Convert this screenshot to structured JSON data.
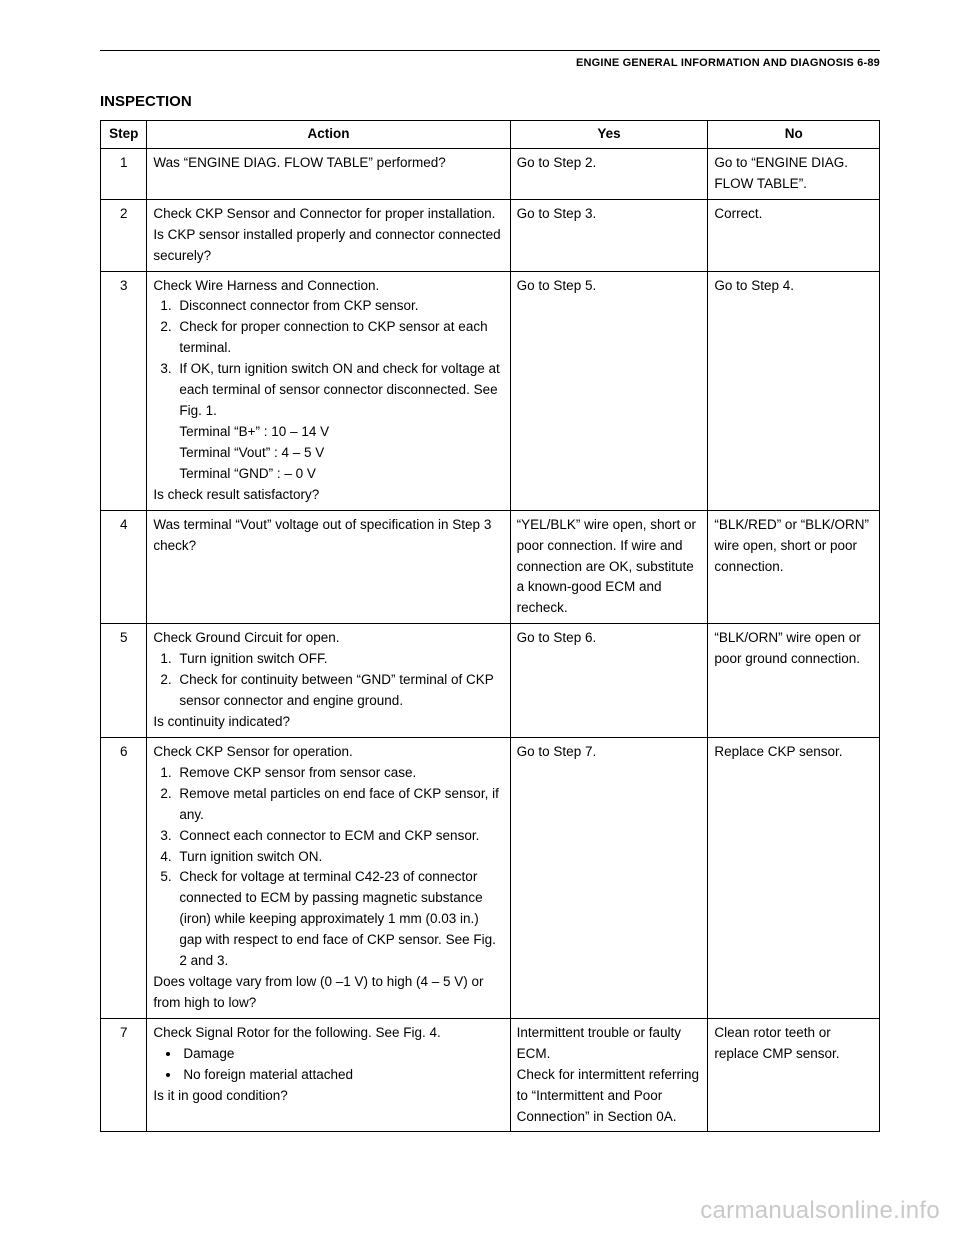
{
  "header": {
    "text": "ENGINE GENERAL INFORMATION AND DIAGNOSIS 6-89"
  },
  "section_title": "INSPECTION",
  "table": {
    "columns": [
      "Step",
      "Action",
      "Yes",
      "No"
    ],
    "rows": [
      {
        "step": "1",
        "action": {
          "intro": "Was “ENGINE DIAG. FLOW TABLE” performed?",
          "list": [],
          "close": ""
        },
        "yes": "Go to Step 2.",
        "no": "Go to “ENGINE DIAG. FLOW TABLE”."
      },
      {
        "step": "2",
        "action": {
          "intro": "Check CKP Sensor and Connector for proper installation.",
          "list": [],
          "close": "Is CKP sensor installed properly and connector connected securely?"
        },
        "yes": "Go to Step 3.",
        "no": "Correct."
      },
      {
        "step": "3",
        "action": {
          "intro": "Check Wire Harness and Connection.",
          "list": [
            "Disconnect connector from CKP sensor.",
            "Check for proper connection to CKP sensor at each terminal.",
            "If OK, turn ignition switch ON and check for voltage at each terminal of sensor connector disconnected. See Fig. 1.\nTerminal “B+” : 10 – 14 V\nTerminal “Vout” : 4 – 5 V\nTerminal “GND” : – 0 V"
          ],
          "close": "Is check result satisfactory?"
        },
        "yes": "Go to Step 5.",
        "no": "Go to Step 4."
      },
      {
        "step": "4",
        "action": {
          "intro": "Was terminal “Vout” voltage out of specification in Step 3 check?",
          "list": [],
          "close": ""
        },
        "yes": "“YEL/BLK” wire open, short or poor connection. If wire and connection are OK, substitute a known-good ECM and recheck.",
        "no": "“BLK/RED” or “BLK/ORN” wire open, short or poor connection."
      },
      {
        "step": "5",
        "action": {
          "intro": "Check Ground Circuit for open.",
          "list": [
            "Turn ignition switch OFF.",
            "Check for continuity between “GND” terminal of CKP sensor connector and engine ground."
          ],
          "close": "Is continuity indicated?"
        },
        "yes": "Go to Step 6.",
        "no": "“BLK/ORN” wire open or poor ground connection."
      },
      {
        "step": "6",
        "action": {
          "intro": "Check CKP Sensor for operation.",
          "list": [
            "Remove CKP sensor from sensor case.",
            "Remove metal particles on end face of CKP sensor, if any.",
            "Connect each connector to ECM and CKP sensor.",
            "Turn ignition switch ON.",
            "Check for voltage at terminal C42-23 of connector connected to ECM by passing magnetic substance (iron) while keeping approximately 1 mm (0.03 in.) gap with respect to end face of CKP sensor. See Fig. 2 and 3."
          ],
          "close": "Does voltage vary from low (0 –1 V) to high (4 – 5 V) or from high to low?"
        },
        "yes": "Go to Step 7.",
        "no": "Replace CKP sensor."
      },
      {
        "step": "7",
        "action": {
          "intro": "Check Signal Rotor for the following. See Fig. 4.",
          "bullets": [
            "Damage",
            "No foreign material attached"
          ],
          "list": [],
          "close": "Is it in good condition?"
        },
        "yes": "Intermittent trouble or faulty ECM.\nCheck for intermittent referring to “Intermittent and Poor Connection” in Section 0A.",
        "no": "Clean rotor teeth or replace CMP sensor."
      }
    ]
  },
  "watermark": "carmanualsonline.info"
}
